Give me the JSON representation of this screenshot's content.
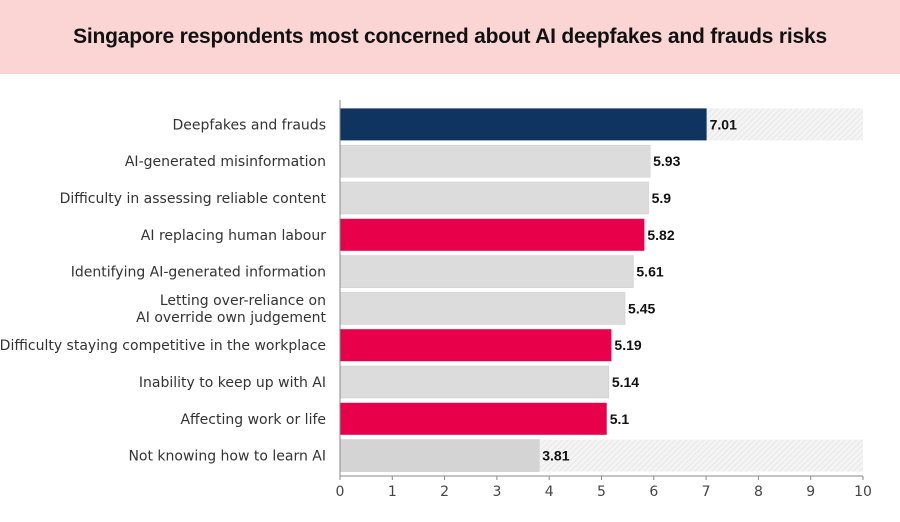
{
  "title": "Singapore respondents most concerned about AI deepfakes and frauds risks",
  "colors": {
    "navy": "#0f3460",
    "red": "#e8004a",
    "grey": "#dcdcdc",
    "banner": "#fbd4d4"
  },
  "chart_data": {
    "type": "bar",
    "orientation": "horizontal",
    "title": "Singapore respondents most concerned about AI deepfakes and frauds risks",
    "xlabel": "",
    "ylabel": "",
    "xlim": [
      0,
      10
    ],
    "xticks": [
      0,
      1,
      2,
      3,
      4,
      5,
      6,
      7,
      8,
      9,
      10
    ],
    "grid": false,
    "categories": [
      [
        "Deepfakes and frauds"
      ],
      [
        "AI-generated misinformation"
      ],
      [
        "Difficulty in assessing reliable content"
      ],
      [
        "AI replacing human labour"
      ],
      [
        "Identifying AI-generated information"
      ],
      [
        "Letting over-reliance on",
        "AI override own judgement"
      ],
      [
        "Difficulty staying competitive in the workplace"
      ],
      [
        "Inability to keep up with AI"
      ],
      [
        "Affecting work or life"
      ],
      [
        "Not knowing how to learn AI"
      ]
    ],
    "values": [
      7.01,
      5.93,
      5.9,
      5.82,
      5.61,
      5.45,
      5.19,
      5.14,
      5.1,
      3.81
    ],
    "value_labels": [
      "7.01",
      "5.93",
      "5.9",
      "5.82",
      "5.61",
      "5.45",
      "5.19",
      "5.14",
      "5.1",
      "3.81"
    ],
    "bar_colors": [
      "navy",
      "grey",
      "grey",
      "red",
      "grey",
      "grey",
      "red",
      "grey",
      "red",
      "grey"
    ],
    "hatched_background_rows": [
      0,
      9
    ]
  }
}
